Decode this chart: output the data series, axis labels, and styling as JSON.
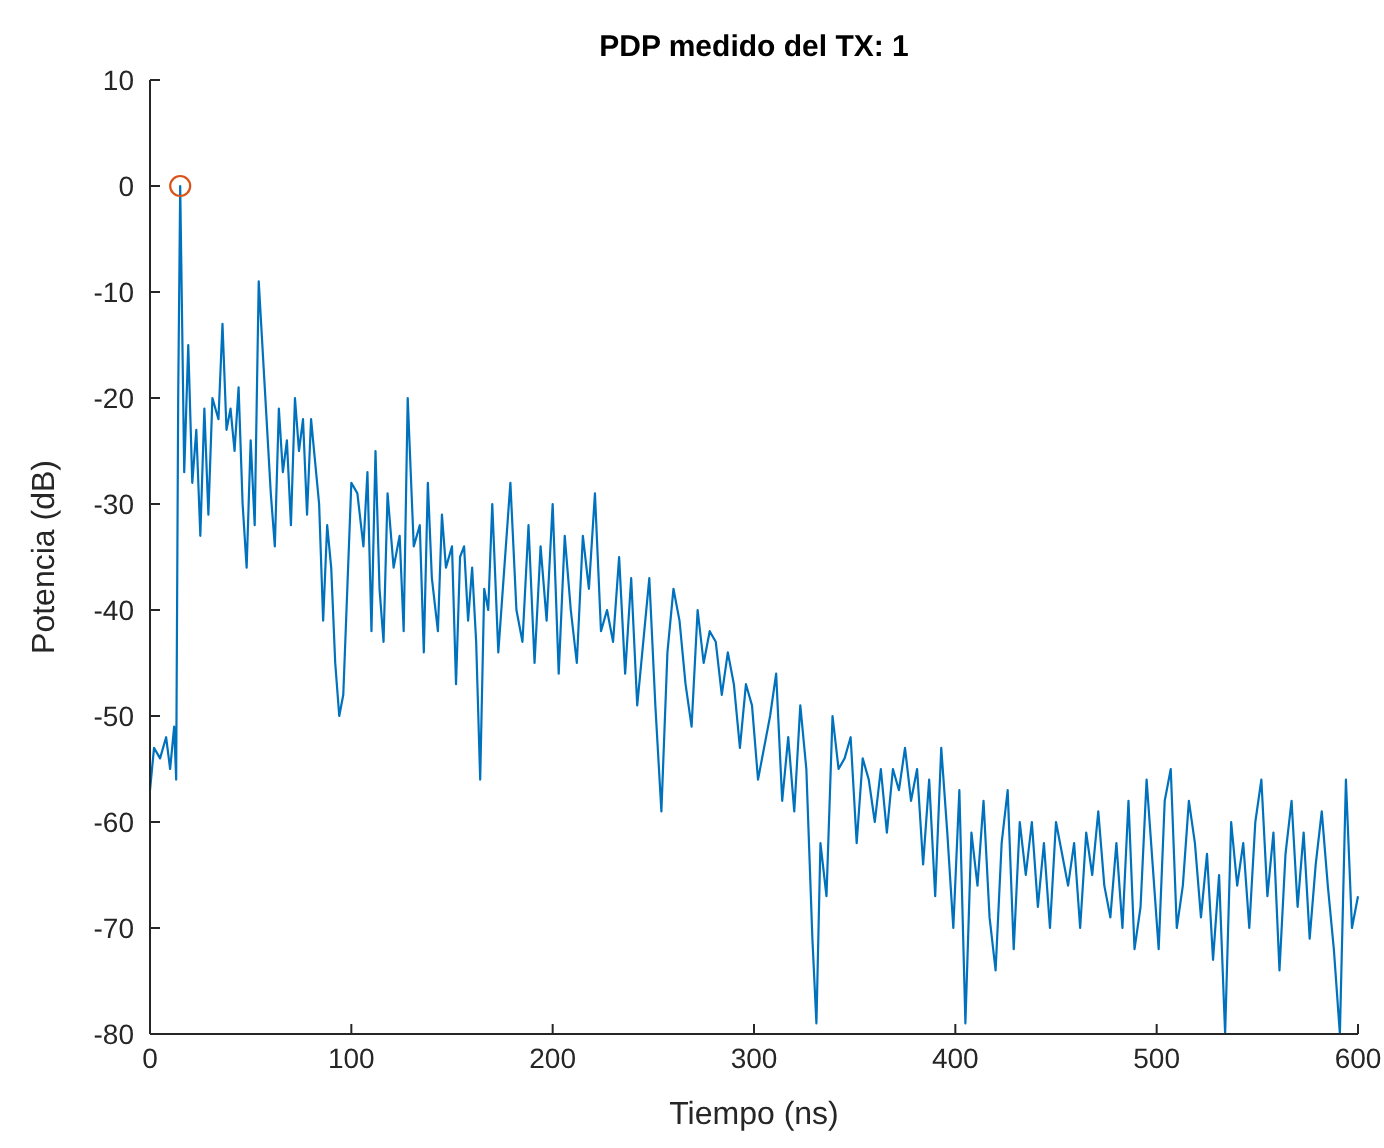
{
  "chart_data": {
    "type": "line",
    "title": "PDP medido del TX: 1",
    "xlabel": "Tiempo (ns)",
    "ylabel": "Potencia (dB)",
    "xlim": [
      0,
      600
    ],
    "xticks": [
      0,
      100,
      200,
      300,
      400,
      500,
      600
    ],
    "ylim": [
      -80,
      10
    ],
    "yticks": [
      -80,
      -70,
      -60,
      -50,
      -40,
      -30,
      -20,
      -10,
      0,
      10
    ],
    "grid": false,
    "series": [
      {
        "color": "#0072bd",
        "marker": "none",
        "x": [
          0,
          2,
          5,
          8,
          10,
          12,
          13,
          14,
          15,
          17,
          19,
          21,
          23,
          25,
          27,
          29,
          31,
          34,
          36,
          38,
          40,
          42,
          44,
          46,
          48,
          50,
          52,
          54,
          57,
          60,
          62,
          64,
          66,
          68,
          70,
          72,
          74,
          76,
          78,
          80,
          82,
          84,
          86,
          88,
          90,
          92,
          94,
          96,
          98,
          100,
          103,
          106,
          108,
          110,
          112,
          114,
          116,
          118,
          121,
          124,
          126,
          128,
          131,
          134,
          136,
          138,
          140,
          143,
          145,
          147,
          150,
          152,
          154,
          156,
          158,
          160,
          162,
          164,
          166,
          168,
          170,
          173,
          176,
          179,
          182,
          185,
          188,
          191,
          194,
          197,
          200,
          203,
          206,
          209,
          212,
          215,
          218,
          221,
          224,
          227,
          230,
          233,
          236,
          239,
          242,
          245,
          248,
          251,
          254,
          257,
          260,
          263,
          266,
          269,
          272,
          275,
          278,
          281,
          284,
          287,
          290,
          293,
          296,
          299,
          302,
          305,
          308,
          311,
          314,
          317,
          320,
          323,
          326,
          329,
          331,
          333,
          336,
          339,
          342,
          345,
          348,
          351,
          354,
          357,
          360,
          363,
          366,
          369,
          372,
          375,
          378,
          381,
          384,
          387,
          390,
          393,
          396,
          399,
          402,
          405,
          408,
          411,
          414,
          417,
          420,
          423,
          426,
          429,
          432,
          435,
          438,
          441,
          444,
          447,
          450,
          453,
          456,
          459,
          462,
          465,
          468,
          471,
          474,
          477,
          480,
          483,
          486,
          489,
          492,
          495,
          498,
          501,
          504,
          507,
          510,
          513,
          516,
          519,
          522,
          525,
          528,
          531,
          534,
          537,
          540,
          543,
          546,
          549,
          552,
          555,
          558,
          561,
          564,
          567,
          570,
          573,
          576,
          579,
          582,
          585,
          588,
          591,
          594,
          597,
          600
        ],
        "values": [
          -57,
          -53,
          -54,
          -52,
          -55,
          -51,
          -56,
          -20,
          0,
          -27,
          -15,
          -28,
          -23,
          -33,
          -21,
          -31,
          -20,
          -22,
          -13,
          -23,
          -21,
          -25,
          -19,
          -30,
          -36,
          -24,
          -32,
          -9,
          -19,
          -29,
          -34,
          -21,
          -27,
          -24,
          -32,
          -20,
          -25,
          -22,
          -31,
          -22,
          -26,
          -30,
          -41,
          -32,
          -36,
          -45,
          -50,
          -48,
          -38,
          -28,
          -29,
          -34,
          -27,
          -42,
          -25,
          -38,
          -43,
          -29,
          -36,
          -33,
          -42,
          -20,
          -34,
          -32,
          -44,
          -28,
          -37,
          -42,
          -31,
          -36,
          -34,
          -47,
          -35,
          -34,
          -41,
          -36,
          -43,
          -56,
          -38,
          -40,
          -30,
          -44,
          -36,
          -28,
          -40,
          -43,
          -32,
          -45,
          -34,
          -41,
          -30,
          -46,
          -33,
          -40,
          -45,
          -33,
          -38,
          -29,
          -42,
          -40,
          -43,
          -35,
          -46,
          -37,
          -49,
          -43,
          -37,
          -49,
          -59,
          -44,
          -38,
          -41,
          -47,
          -51,
          -40,
          -45,
          -42,
          -43,
          -48,
          -44,
          -47,
          -53,
          -47,
          -49,
          -56,
          -53,
          -50,
          -46,
          -58,
          -52,
          -59,
          -49,
          -55,
          -71,
          -79,
          -62,
          -67,
          -50,
          -55,
          -54,
          -52,
          -62,
          -54,
          -56,
          -60,
          -55,
          -61,
          -55,
          -57,
          -53,
          -58,
          -55,
          -64,
          -56,
          -67,
          -53,
          -61,
          -70,
          -57,
          -79,
          -61,
          -66,
          -58,
          -69,
          -74,
          -62,
          -57,
          -72,
          -60,
          -65,
          -60,
          -68,
          -62,
          -70,
          -60,
          -63,
          -66,
          -62,
          -70,
          -61,
          -65,
          -59,
          -66,
          -69,
          -62,
          -70,
          -58,
          -72,
          -68,
          -56,
          -64,
          -72,
          -58,
          -55,
          -70,
          -66,
          -58,
          -62,
          -69,
          -63,
          -73,
          -65,
          -80,
          -60,
          -66,
          -62,
          -70,
          -60,
          -56,
          -67,
          -61,
          -74,
          -63,
          -58,
          -68,
          -61,
          -71,
          -64,
          -59,
          -66,
          -72,
          -80,
          -56,
          -70,
          -67
        ]
      },
      {
        "type": "scatter",
        "color": "#d95319",
        "marker": "circle",
        "x": [
          15
        ],
        "values": [
          0
        ]
      }
    ]
  }
}
